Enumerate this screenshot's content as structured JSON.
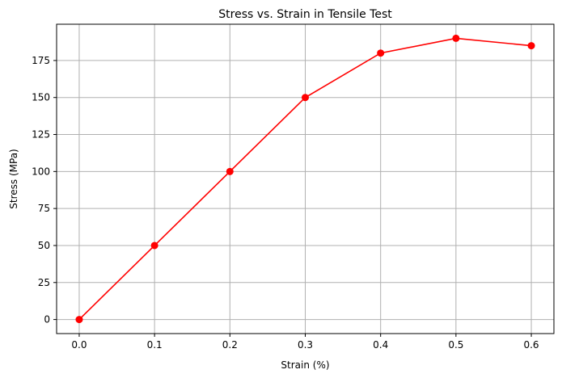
{
  "chart_data": {
    "type": "line",
    "title": "Stress vs. Strain in Tensile Test",
    "xlabel": "Strain (%)",
    "ylabel": "Stress (MPa)",
    "x": [
      0.0,
      0.1,
      0.2,
      0.3,
      0.4,
      0.5,
      0.6
    ],
    "series": [
      {
        "values": [
          0,
          50,
          100,
          150,
          180,
          190,
          185
        ],
        "color": "#ff0000",
        "marker": "circle"
      }
    ],
    "xlim": [
      -0.03,
      0.63
    ],
    "ylim": [
      -9.5,
      199.5
    ],
    "xticks": [
      "0.0",
      "0.1",
      "0.2",
      "0.3",
      "0.4",
      "0.5",
      "0.6"
    ],
    "yticks": [
      "0",
      "25",
      "50",
      "75",
      "100",
      "125",
      "150",
      "175"
    ],
    "grid": true,
    "legend": "none"
  }
}
